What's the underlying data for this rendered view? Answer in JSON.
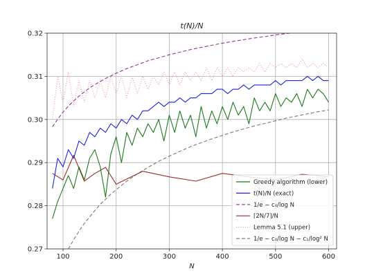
{
  "chart_data": {
    "type": "line",
    "title": "t(N)/N",
    "xlabel": "N",
    "ylabel": "",
    "xlim": [
      70,
      615
    ],
    "ylim": [
      0.27,
      0.32
    ],
    "xticks": [
      100,
      200,
      300,
      400,
      500,
      600
    ],
    "xtick_labels": [
      "100",
      "200",
      "300",
      "400",
      "500",
      "600"
    ],
    "yticks": [
      0.27,
      0.28,
      0.29,
      0.3,
      0.31,
      0.32
    ],
    "ytick_labels": [
      "0.27",
      "0.28",
      "0.29",
      "0.30",
      "0.31",
      "0.32"
    ],
    "grid": true,
    "legend_position": "lower-right",
    "series": [
      {
        "name": "Greedy algorithm (lower)",
        "color": "#1a7a1a",
        "style": "solid",
        "x": [
          80,
          90,
          100,
          110,
          120,
          130,
          140,
          150,
          160,
          170,
          180,
          190,
          200,
          210,
          220,
          230,
          240,
          250,
          260,
          270,
          280,
          290,
          300,
          310,
          320,
          330,
          340,
          350,
          360,
          370,
          380,
          390,
          400,
          410,
          420,
          430,
          440,
          450,
          460,
          470,
          480,
          490,
          500,
          510,
          520,
          530,
          540,
          550,
          560,
          570,
          580,
          590,
          600
        ],
        "y": [
          0.277,
          0.281,
          0.284,
          0.287,
          0.284,
          0.289,
          0.286,
          0.291,
          0.293,
          0.289,
          0.282,
          0.292,
          0.296,
          0.29,
          0.297,
          0.294,
          0.298,
          0.296,
          0.299,
          0.297,
          0.3,
          0.295,
          0.301,
          0.297,
          0.302,
          0.298,
          0.301,
          0.296,
          0.303,
          0.298,
          0.302,
          0.299,
          0.303,
          0.3,
          0.304,
          0.301,
          0.303,
          0.299,
          0.305,
          0.302,
          0.304,
          0.302,
          0.306,
          0.303,
          0.305,
          0.304,
          0.306,
          0.303,
          0.307,
          0.305,
          0.307,
          0.306,
          0.304
        ]
      },
      {
        "name": "t(N)/N (exact)",
        "color": "#1f1fe0",
        "style": "solid",
        "x": [
          80,
          90,
          100,
          110,
          120,
          130,
          140,
          150,
          160,
          170,
          180,
          190,
          200,
          210,
          220,
          230,
          240,
          250,
          260,
          270,
          280,
          290,
          300,
          310,
          320,
          330,
          340,
          350,
          360,
          370,
          380,
          390,
          400,
          410,
          420,
          430,
          440,
          450,
          460,
          470,
          480,
          490,
          500,
          510,
          520,
          530,
          540,
          550,
          560,
          570,
          580,
          590,
          600
        ],
        "y": [
          0.284,
          0.291,
          0.289,
          0.293,
          0.291,
          0.295,
          0.294,
          0.297,
          0.296,
          0.298,
          0.297,
          0.299,
          0.298,
          0.3,
          0.299,
          0.301,
          0.3,
          0.302,
          0.302,
          0.303,
          0.304,
          0.303,
          0.304,
          0.304,
          0.305,
          0.304,
          0.305,
          0.305,
          0.306,
          0.306,
          0.306,
          0.307,
          0.307,
          0.306,
          0.307,
          0.307,
          0.308,
          0.307,
          0.308,
          0.308,
          0.308,
          0.308,
          0.309,
          0.308,
          0.309,
          0.309,
          0.309,
          0.309,
          0.31,
          0.309,
          0.31,
          0.309,
          0.309
        ]
      },
      {
        "name": "1/e − c₀/log N",
        "color": "#8e3a8e",
        "style": "dashed",
        "x": [
          80,
          90,
          100,
          110,
          120,
          130,
          140,
          150,
          160,
          170,
          180,
          190,
          200,
          220,
          240,
          260,
          280,
          300,
          320,
          340,
          360,
          380,
          400,
          420,
          440,
          460,
          480,
          500,
          520,
          540,
          560,
          580,
          600
        ],
        "y": [
          0.2983,
          0.3001,
          0.3017,
          0.3031,
          0.3043,
          0.3054,
          0.3064,
          0.3073,
          0.3081,
          0.3088,
          0.3095,
          0.3101,
          0.3107,
          0.3118,
          0.3127,
          0.3136,
          0.3143,
          0.315,
          0.3156,
          0.3162,
          0.3167,
          0.3172,
          0.3177,
          0.3181,
          0.3185,
          0.3189,
          0.3192,
          0.3196,
          0.3199,
          0.3202,
          0.3205,
          0.3208,
          0.3211
        ]
      },
      {
        "name": "⌈2N/7⌉/N",
        "color": "#9b2a2a",
        "style": "solid",
        "x": [
          80,
          100,
          120,
          140,
          160,
          180,
          200,
          250,
          300,
          350,
          400,
          450,
          500,
          550,
          600
        ],
        "y": [
          0.2875,
          0.286,
          0.2917,
          0.2857,
          0.2875,
          0.2889,
          0.285,
          0.288,
          0.2867,
          0.2857,
          0.2875,
          0.2867,
          0.286,
          0.2873,
          0.2867
        ]
      },
      {
        "name": "Lemma 5.1 (upper)",
        "color": "#f4a0b4",
        "style": "dotted",
        "x": [
          80,
          90,
          100,
          110,
          120,
          130,
          140,
          150,
          160,
          170,
          180,
          190,
          200,
          210,
          220,
          230,
          240,
          250,
          260,
          270,
          280,
          290,
          300,
          310,
          320,
          330,
          340,
          350,
          360,
          370,
          380,
          390,
          400,
          410,
          420,
          430,
          440,
          450,
          460,
          470,
          480,
          490,
          500,
          510,
          520,
          530,
          540,
          550,
          560,
          570,
          580,
          590,
          600
        ],
        "y": [
          0.3,
          0.31,
          0.304,
          0.311,
          0.303,
          0.309,
          0.304,
          0.309,
          0.305,
          0.309,
          0.305,
          0.31,
          0.306,
          0.31,
          0.305,
          0.31,
          0.306,
          0.31,
          0.307,
          0.31,
          0.308,
          0.311,
          0.308,
          0.311,
          0.308,
          0.311,
          0.309,
          0.311,
          0.309,
          0.312,
          0.309,
          0.312,
          0.31,
          0.312,
          0.31,
          0.312,
          0.311,
          0.312,
          0.311,
          0.313,
          0.311,
          0.313,
          0.312,
          0.313,
          0.312,
          0.313,
          0.312,
          0.314,
          0.312,
          0.313,
          0.312,
          0.313,
          0.312
        ]
      },
      {
        "name": "1/e − c₀/log N − c₁/log² N",
        "color": "#7a7a7a",
        "style": "dashed",
        "x": [
          110,
          120,
          130,
          140,
          150,
          160,
          170,
          180,
          190,
          200,
          220,
          240,
          260,
          280,
          300,
          320,
          340,
          360,
          380,
          400,
          420,
          440,
          460,
          480,
          500,
          520,
          540,
          560,
          580,
          600
        ],
        "y": [
          0.27,
          0.2721,
          0.2741,
          0.2759,
          0.2774,
          0.2789,
          0.2803,
          0.2815,
          0.2827,
          0.2837,
          0.2857,
          0.2874,
          0.2889,
          0.2903,
          0.2915,
          0.2926,
          0.2937,
          0.2946,
          0.2955,
          0.2963,
          0.2971,
          0.2978,
          0.2985,
          0.2991,
          0.2997,
          0.3003,
          0.3008,
          0.3013,
          0.3018,
          0.3022
        ]
      }
    ]
  }
}
